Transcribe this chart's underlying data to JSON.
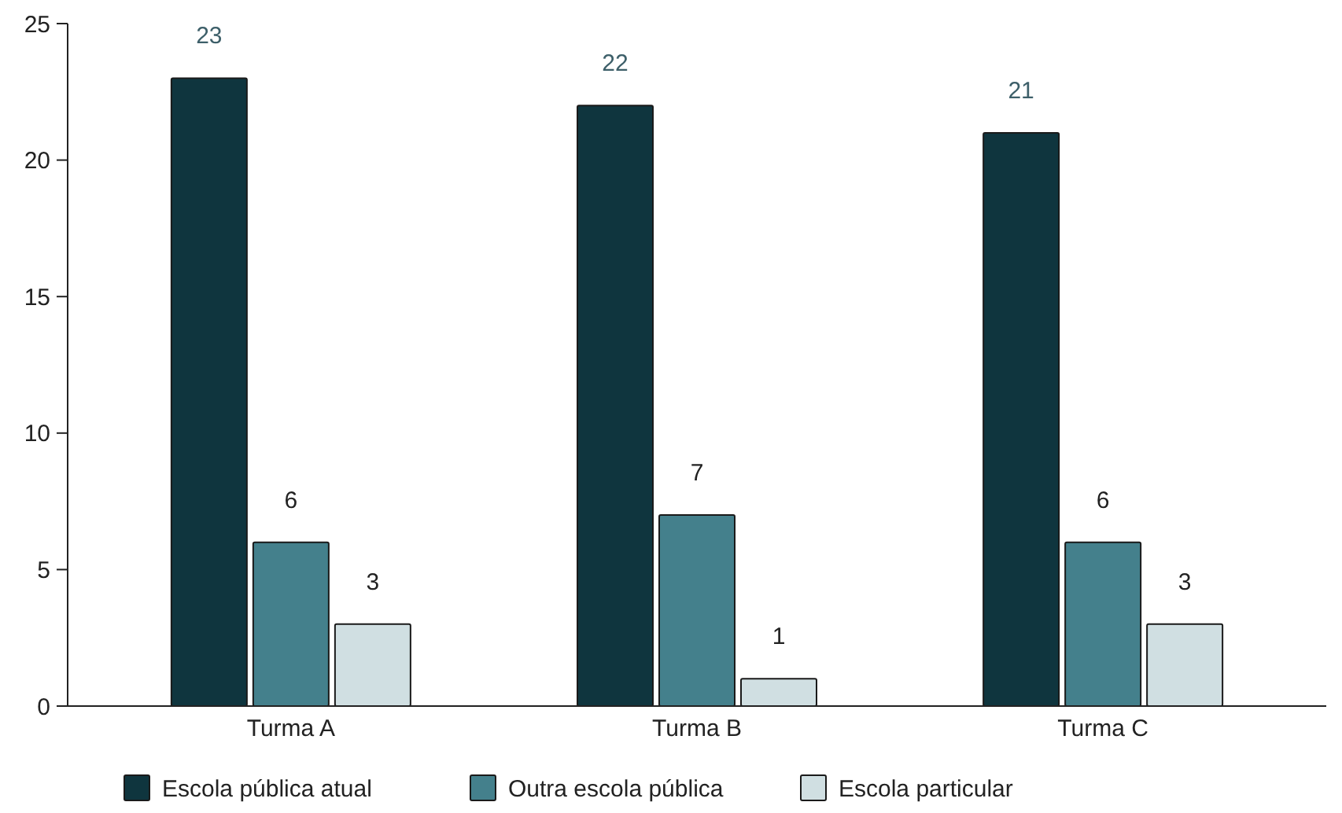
{
  "chart_data": {
    "type": "bar",
    "categories": [
      "Turma A",
      "Turma B",
      "Turma C"
    ],
    "series": [
      {
        "name": "Escola pública atual",
        "color": "#0f353e",
        "values": [
          23,
          22,
          21
        ]
      },
      {
        "name": "Outra escola pública",
        "color": "#44808c",
        "values": [
          6,
          7,
          6
        ]
      },
      {
        "name": "Escola particular",
        "color": "#d0dfe2",
        "values": [
          3,
          1,
          3
        ]
      }
    ],
    "ylim": [
      0,
      25
    ],
    "yticks": [
      0,
      5,
      10,
      15,
      20,
      25
    ],
    "grid": false,
    "legend": "bottom",
    "data_labels": true
  }
}
